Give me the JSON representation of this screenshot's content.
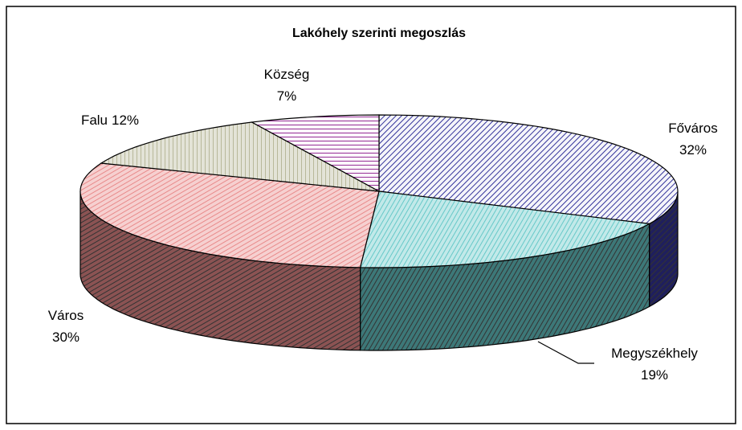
{
  "chart_data": {
    "type": "pie3d",
    "title": "Lakóhely szerinti megoszlás",
    "categories": [
      "Főváros",
      "Megyszékhely",
      "Város",
      "Falu",
      "Község"
    ],
    "values": [
      32,
      19,
      30,
      12,
      7
    ],
    "value_labels": [
      "32%",
      "19%",
      "30%",
      "12%",
      "7%"
    ],
    "colors": [
      "#33339a",
      "#66c8c8",
      "#e88a8a",
      "#b8b89a",
      "#993399"
    ]
  }
}
